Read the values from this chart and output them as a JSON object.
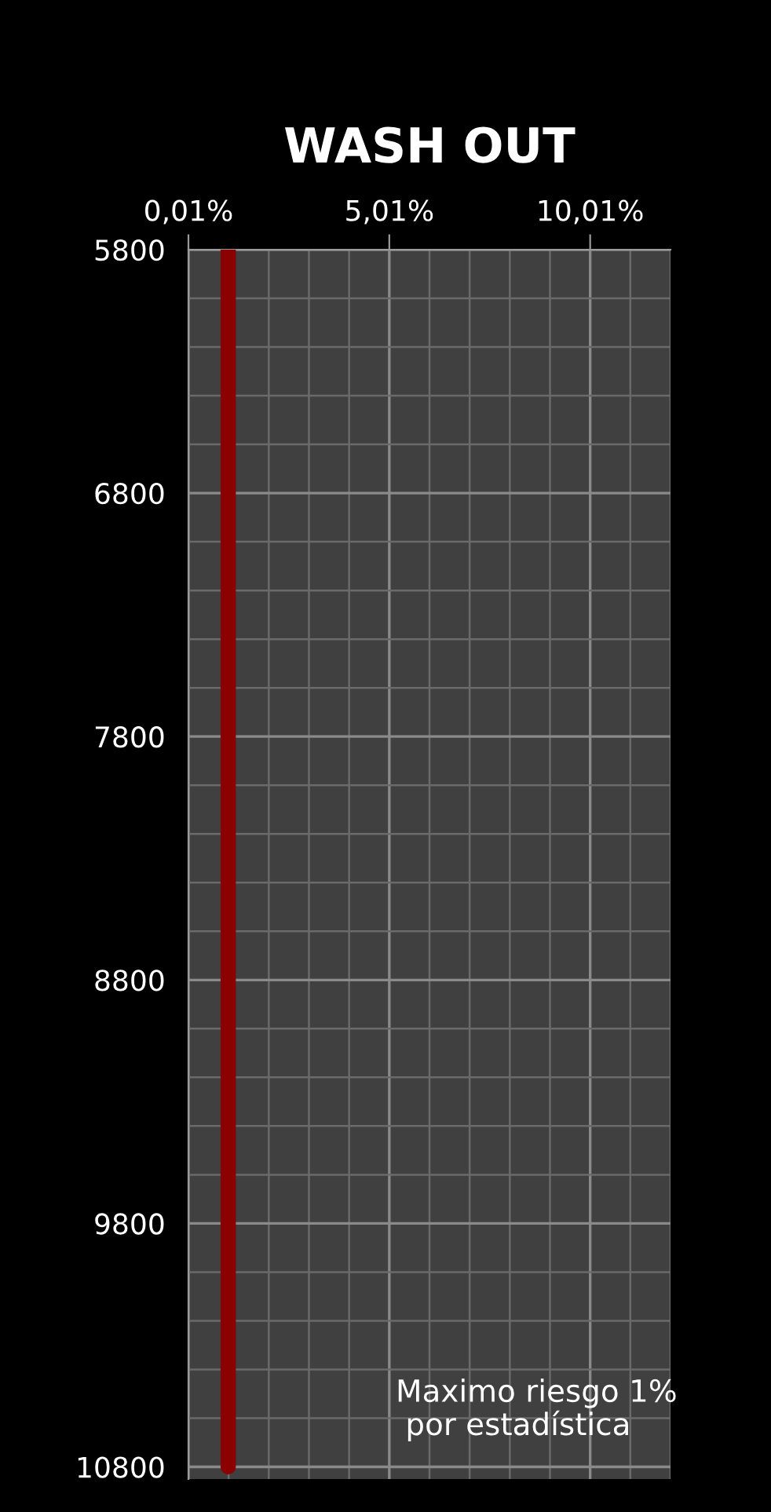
{
  "chart_data": {
    "type": "line",
    "title": "WASH OUT",
    "series": [
      {
        "color": "#8b0000",
        "x": [
          1.0,
          1.0
        ],
        "values": [
          5800,
          10800
        ]
      }
    ],
    "xlim": [
      0.01,
      12.01
    ],
    "xticks": [
      {
        "value": 0.01,
        "label": "0,01%"
      },
      {
        "value": 5.01,
        "label": "5,01%"
      },
      {
        "value": 10.01,
        "label": "10,01%"
      }
    ],
    "ylim": [
      10850,
      5800
    ],
    "yticks": [
      5800,
      6800,
      7800,
      8800,
      9800,
      10800
    ],
    "grid": true,
    "line_style": "solid",
    "marker": "none",
    "annotations": [
      "Maximo riesgo 1%\n por estadística"
    ]
  }
}
